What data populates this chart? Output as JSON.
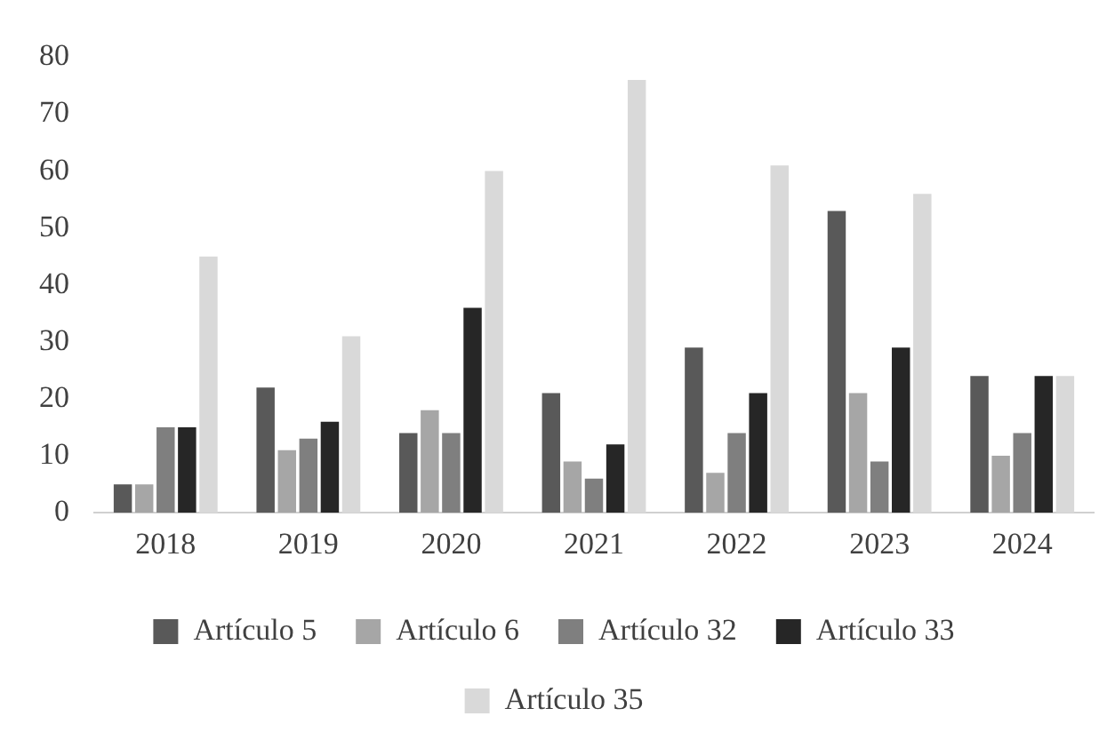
{
  "chart_data": {
    "type": "bar",
    "categories": [
      "2018",
      "2019",
      "2020",
      "2021",
      "2022",
      "2023",
      "2024"
    ],
    "series": [
      {
        "name": "Artículo 5",
        "color": "#595959",
        "values": [
          5,
          22,
          14,
          21,
          29,
          53,
          24
        ]
      },
      {
        "name": "Artículo 6",
        "color": "#a6a6a6",
        "values": [
          5,
          11,
          18,
          9,
          7,
          21,
          10
        ]
      },
      {
        "name": "Artículo 32",
        "color": "#7f7f7f",
        "values": [
          15,
          13,
          14,
          6,
          14,
          9,
          14
        ]
      },
      {
        "name": "Artículo 33",
        "color": "#262626",
        "values": [
          15,
          16,
          36,
          12,
          21,
          29,
          24
        ]
      },
      {
        "name": "Artículo 35",
        "color": "#d9d9d9",
        "values": [
          45,
          31,
          60,
          76,
          61,
          56,
          24
        ]
      }
    ],
    "ylim": [
      0,
      80
    ],
    "yticks": [
      0,
      10,
      20,
      30,
      40,
      50,
      60,
      70,
      80
    ],
    "grid": false,
    "legend": "bottom"
  }
}
